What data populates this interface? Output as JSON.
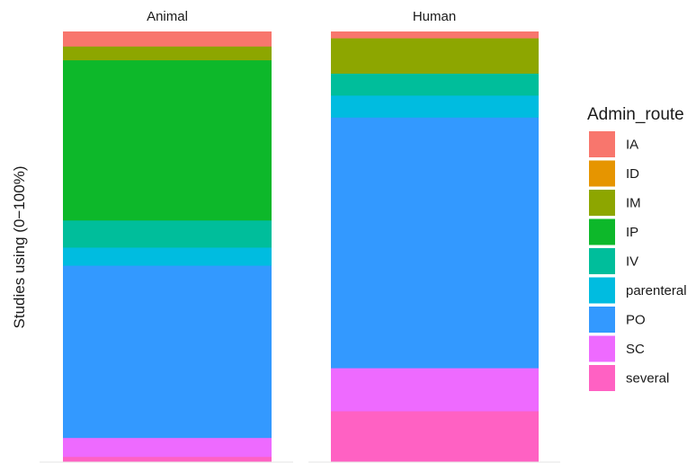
{
  "chart_data": {
    "type": "bar",
    "stacked": true,
    "normalized": true,
    "ylabel": "Studies using (0−100%)",
    "ylim": [
      0,
      100
    ],
    "grid": false,
    "legend_position": "right",
    "legend_title": "Admin_route",
    "panels": [
      {
        "title": "Animal",
        "segments": [
          {
            "route": "IA",
            "percent": 3.5
          },
          {
            "route": "IM",
            "percent": 3.2
          },
          {
            "route": "IP",
            "percent": 37.2
          },
          {
            "route": "IV",
            "percent": 6.3
          },
          {
            "route": "parenteral",
            "percent": 4.2
          },
          {
            "route": "PO",
            "percent": 40.0
          },
          {
            "route": "SC",
            "percent": 4.4
          },
          {
            "route": "several",
            "percent": 1.2
          }
        ]
      },
      {
        "title": "Human",
        "segments": [
          {
            "route": "IA",
            "percent": 1.6
          },
          {
            "route": "IM",
            "percent": 8.2
          },
          {
            "route": "IV",
            "percent": 5.1
          },
          {
            "route": "parenteral",
            "percent": 5.1
          },
          {
            "route": "PO",
            "percent": 58.2
          },
          {
            "route": "SC",
            "percent": 10.0
          },
          {
            "route": "several",
            "percent": 11.8
          }
        ]
      }
    ],
    "legend": [
      {
        "label": "IA",
        "color": "#F8766D"
      },
      {
        "label": "ID",
        "color": "#E69500"
      },
      {
        "label": "IM",
        "color": "#8DA600"
      },
      {
        "label": "IP",
        "color": "#0DB82A"
      },
      {
        "label": "IV",
        "color": "#00BE9B"
      },
      {
        "label": "parenteral",
        "color": "#00BCE0"
      },
      {
        "label": "PO",
        "color": "#3399FF"
      },
      {
        "label": "SC",
        "color": "#EE6AFF"
      },
      {
        "label": "several",
        "color": "#FF61C3"
      }
    ]
  }
}
